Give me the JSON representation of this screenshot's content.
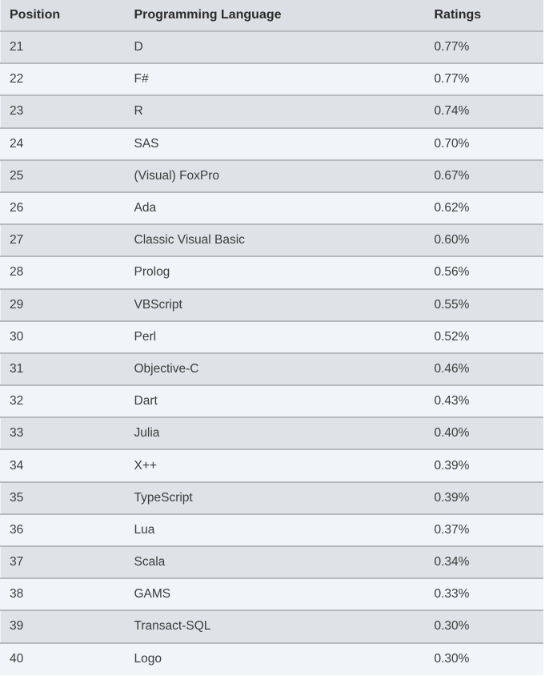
{
  "table": {
    "headers": {
      "position": "Position",
      "language": "Programming Language",
      "ratings": "Ratings"
    },
    "rows": [
      {
        "position": "21",
        "language": "D",
        "rating": "0.77%"
      },
      {
        "position": "22",
        "language": "F#",
        "rating": "0.77%"
      },
      {
        "position": "23",
        "language": "R",
        "rating": "0.74%"
      },
      {
        "position": "24",
        "language": "SAS",
        "rating": "0.70%"
      },
      {
        "position": "25",
        "language": "(Visual) FoxPro",
        "rating": "0.67%"
      },
      {
        "position": "26",
        "language": "Ada",
        "rating": "0.62%"
      },
      {
        "position": "27",
        "language": "Classic Visual Basic",
        "rating": "0.60%"
      },
      {
        "position": "28",
        "language": "Prolog",
        "rating": "0.56%"
      },
      {
        "position": "29",
        "language": "VBScript",
        "rating": "0.55%"
      },
      {
        "position": "30",
        "language": "Perl",
        "rating": "0.52%"
      },
      {
        "position": "31",
        "language": "Objective-C",
        "rating": "0.46%"
      },
      {
        "position": "32",
        "language": "Dart",
        "rating": "0.43%"
      },
      {
        "position": "33",
        "language": "Julia",
        "rating": "0.40%"
      },
      {
        "position": "34",
        "language": "X++",
        "rating": "0.39%"
      },
      {
        "position": "35",
        "language": "TypeScript",
        "rating": "0.39%"
      },
      {
        "position": "36",
        "language": "Lua",
        "rating": "0.37%"
      },
      {
        "position": "37",
        "language": "Scala",
        "rating": "0.34%"
      },
      {
        "position": "38",
        "language": "GAMS",
        "rating": "0.33%"
      },
      {
        "position": "39",
        "language": "Transact-SQL",
        "rating": "0.30%"
      },
      {
        "position": "40",
        "language": "Logo",
        "rating": "0.30%"
      }
    ]
  }
}
